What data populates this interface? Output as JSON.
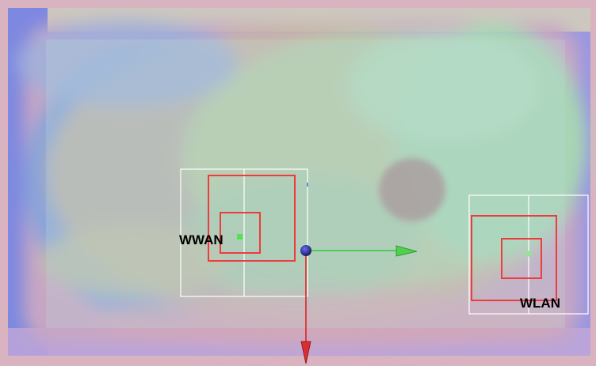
{
  "scene": {
    "antennas": [
      {
        "id": "wwan",
        "label": "WWAN",
        "marker_color": "#55e055"
      },
      {
        "id": "wlan",
        "label": "WLAN",
        "marker_color": "#8de88d"
      }
    ],
    "axis_colors": {
      "x_axis": "#33cc33",
      "y_axis": "#dd2222",
      "origin": "#2a2a7a"
    },
    "heatmap_colors": {
      "background": "#d9b4c0",
      "frame_outer": "#7a86e0",
      "frame_top": "#d6d0b8",
      "board": "#a7c1d2",
      "low": "#7aa0d8",
      "mid": "#c8b8a0",
      "high": "#a8d6a8",
      "peak": "#b6e0c2",
      "hotspot": "#a48a8c"
    },
    "box_colors": {
      "outline": "#ffffff",
      "region": "#ee3b3b"
    }
  }
}
